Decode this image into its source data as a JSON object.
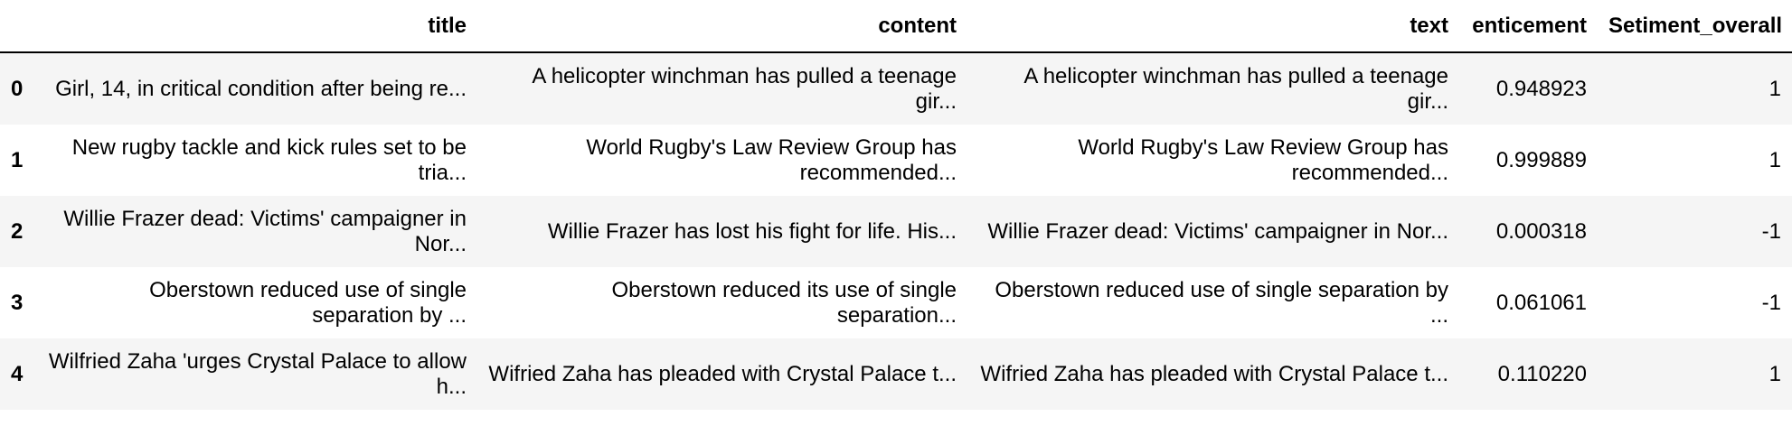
{
  "table": {
    "columns": {
      "index": "",
      "title": "title",
      "content": "content",
      "text": "text",
      "enticement": "enticement",
      "sentiment": "Setiment_overall"
    },
    "rows": [
      {
        "index": "0",
        "title": "Girl, 14, in critical condition after being re...",
        "content": "A helicopter winchman has pulled a teenage gir...",
        "text": "A helicopter winchman has pulled a teenage gir...",
        "enticement": "0.948923",
        "sentiment": "1"
      },
      {
        "index": "1",
        "title": "New rugby tackle and kick rules set to be tria...",
        "content": "World Rugby's Law Review Group has recommended...",
        "text": "World Rugby's Law Review Group has recommended...",
        "enticement": "0.999889",
        "sentiment": "1"
      },
      {
        "index": "2",
        "title": "Willie Frazer dead: Victims' campaigner in Nor...",
        "content": "Willie Frazer has lost his fight for life. His...",
        "text": "Willie Frazer dead: Victims' campaigner in Nor...",
        "enticement": "0.000318",
        "sentiment": "-1"
      },
      {
        "index": "3",
        "title": "Oberstown reduced use of single separation by ...",
        "content": "Oberstown reduced its use of single separation...",
        "text": "Oberstown reduced use of single separation by ...",
        "enticement": "0.061061",
        "sentiment": "-1"
      },
      {
        "index": "4",
        "title": "Wilfried Zaha 'urges Crystal Palace to allow h...",
        "content": "Wifried Zaha has pleaded with Crystal Palace t...",
        "text": "Wifried Zaha has pleaded with Crystal Palace t...",
        "enticement": "0.110220",
        "sentiment": "1"
      }
    ]
  }
}
